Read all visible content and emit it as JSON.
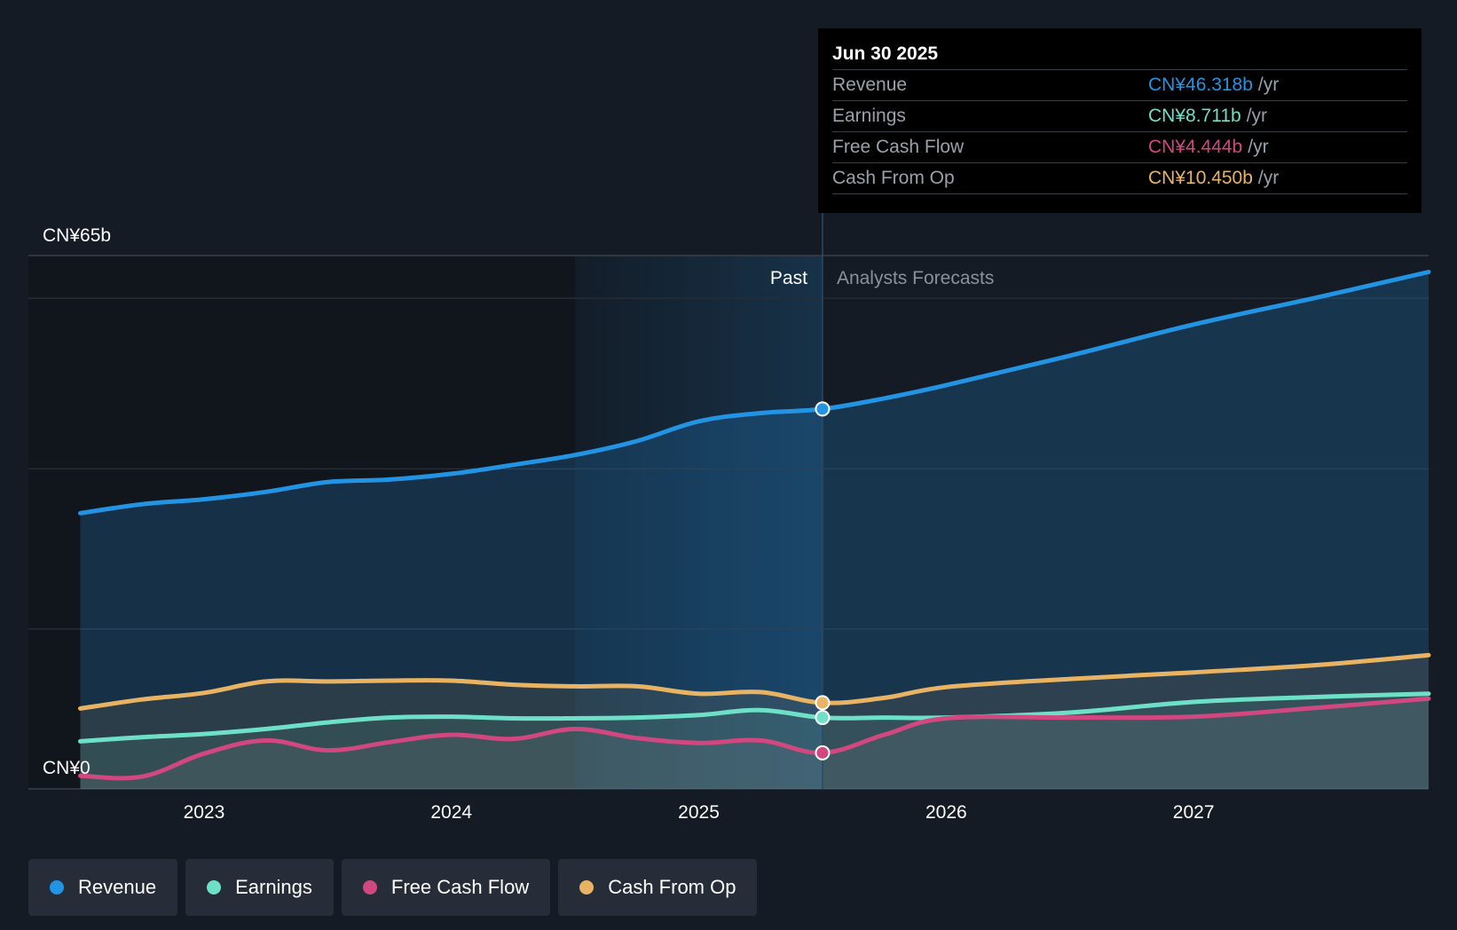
{
  "colors": {
    "revenue": "#2393e4",
    "earnings": "#6fe0c8",
    "free_cash_flow": "#d0487f",
    "cash_from_op": "#e9b364",
    "background": "#151b24",
    "tooltip_bg": "#000000"
  },
  "tooltip": {
    "date": "Jun 30 2025",
    "rows": [
      {
        "label": "Revenue",
        "value": "CN¥46.318b",
        "unit": "/yr"
      },
      {
        "label": "Earnings",
        "value": "CN¥8.711b",
        "unit": "/yr"
      },
      {
        "label": "Free Cash Flow",
        "value": "CN¥4.444b",
        "unit": "/yr"
      },
      {
        "label": "Cash From Op",
        "value": "CN¥10.450b",
        "unit": "/yr"
      }
    ]
  },
  "legend": [
    {
      "label": "Revenue",
      "color": "#2393e4"
    },
    {
      "label": "Earnings",
      "color": "#6fe0c8"
    },
    {
      "label": "Free Cash Flow",
      "color": "#d0487f"
    },
    {
      "label": "Cash From Op",
      "color": "#e9b364"
    }
  ],
  "chart_data": {
    "type": "area",
    "x_axis": {
      "min": 2022.29,
      "max": 2027.95,
      "ticks": [
        "2023",
        "2024",
        "2025",
        "2026",
        "2027"
      ]
    },
    "y_axis": {
      "min": 0,
      "max": 65,
      "top_label": "CN¥65b",
      "bottom_label": "CN¥0"
    },
    "grid": true,
    "past_label": "Past",
    "forecast_label": "Analysts Forecasts",
    "divider_x": 2025.5,
    "past_shade_start_x": 2024.5,
    "series": [
      {
        "name": "Revenue",
        "color": "#2393e4",
        "marker_x": 2025.5,
        "points": [
          [
            2022.5,
            33.6
          ],
          [
            2022.75,
            34.7
          ],
          [
            2023.0,
            35.3
          ],
          [
            2023.25,
            36.2
          ],
          [
            2023.5,
            37.4
          ],
          [
            2023.75,
            37.7
          ],
          [
            2024.0,
            38.4
          ],
          [
            2024.25,
            39.5
          ],
          [
            2024.5,
            40.7
          ],
          [
            2024.75,
            42.4
          ],
          [
            2025.0,
            44.8
          ],
          [
            2025.25,
            45.8
          ],
          [
            2025.5,
            46.3
          ],
          [
            2025.75,
            47.6
          ],
          [
            2026.0,
            49.2
          ],
          [
            2026.5,
            52.8
          ],
          [
            2027.0,
            56.6
          ],
          [
            2027.5,
            59.9
          ],
          [
            2027.95,
            63.0
          ]
        ]
      },
      {
        "name": "Earnings",
        "color": "#6fe0c8",
        "marker_x": 2025.5,
        "points": [
          [
            2022.5,
            5.8
          ],
          [
            2022.75,
            6.3
          ],
          [
            2023.0,
            6.7
          ],
          [
            2023.25,
            7.3
          ],
          [
            2023.5,
            8.1
          ],
          [
            2023.75,
            8.7
          ],
          [
            2024.0,
            8.8
          ],
          [
            2024.25,
            8.6
          ],
          [
            2024.5,
            8.6
          ],
          [
            2024.75,
            8.7
          ],
          [
            2025.0,
            9.0
          ],
          [
            2025.25,
            9.6
          ],
          [
            2025.5,
            8.7
          ],
          [
            2025.75,
            8.7
          ],
          [
            2026.0,
            8.7
          ],
          [
            2026.5,
            9.3
          ],
          [
            2027.0,
            10.6
          ],
          [
            2027.5,
            11.2
          ],
          [
            2027.95,
            11.6
          ]
        ]
      },
      {
        "name": "Free Cash Flow",
        "color": "#d0487f",
        "marker_x": 2025.5,
        "points": [
          [
            2022.5,
            1.6
          ],
          [
            2022.75,
            1.5
          ],
          [
            2023.0,
            4.3
          ],
          [
            2023.25,
            5.9
          ],
          [
            2023.5,
            4.7
          ],
          [
            2023.75,
            5.7
          ],
          [
            2024.0,
            6.6
          ],
          [
            2024.25,
            6.1
          ],
          [
            2024.5,
            7.3
          ],
          [
            2024.75,
            6.2
          ],
          [
            2025.0,
            5.6
          ],
          [
            2025.25,
            5.9
          ],
          [
            2025.5,
            4.4
          ],
          [
            2025.75,
            6.6
          ],
          [
            2026.0,
            8.6
          ],
          [
            2026.5,
            8.7
          ],
          [
            2027.0,
            8.8
          ],
          [
            2027.5,
            9.9
          ],
          [
            2027.95,
            11.0
          ]
        ]
      },
      {
        "name": "Cash From Op",
        "color": "#e9b364",
        "marker_x": 2025.5,
        "points": [
          [
            2022.5,
            9.8
          ],
          [
            2022.75,
            10.9
          ],
          [
            2023.0,
            11.7
          ],
          [
            2023.25,
            13.1
          ],
          [
            2023.5,
            13.1
          ],
          [
            2023.75,
            13.2
          ],
          [
            2024.0,
            13.2
          ],
          [
            2024.25,
            12.7
          ],
          [
            2024.5,
            12.5
          ],
          [
            2024.75,
            12.5
          ],
          [
            2025.0,
            11.6
          ],
          [
            2025.25,
            11.8
          ],
          [
            2025.5,
            10.5
          ],
          [
            2025.75,
            11.1
          ],
          [
            2026.0,
            12.4
          ],
          [
            2026.5,
            13.4
          ],
          [
            2027.0,
            14.2
          ],
          [
            2027.5,
            15.1
          ],
          [
            2027.95,
            16.3
          ]
        ]
      }
    ]
  }
}
